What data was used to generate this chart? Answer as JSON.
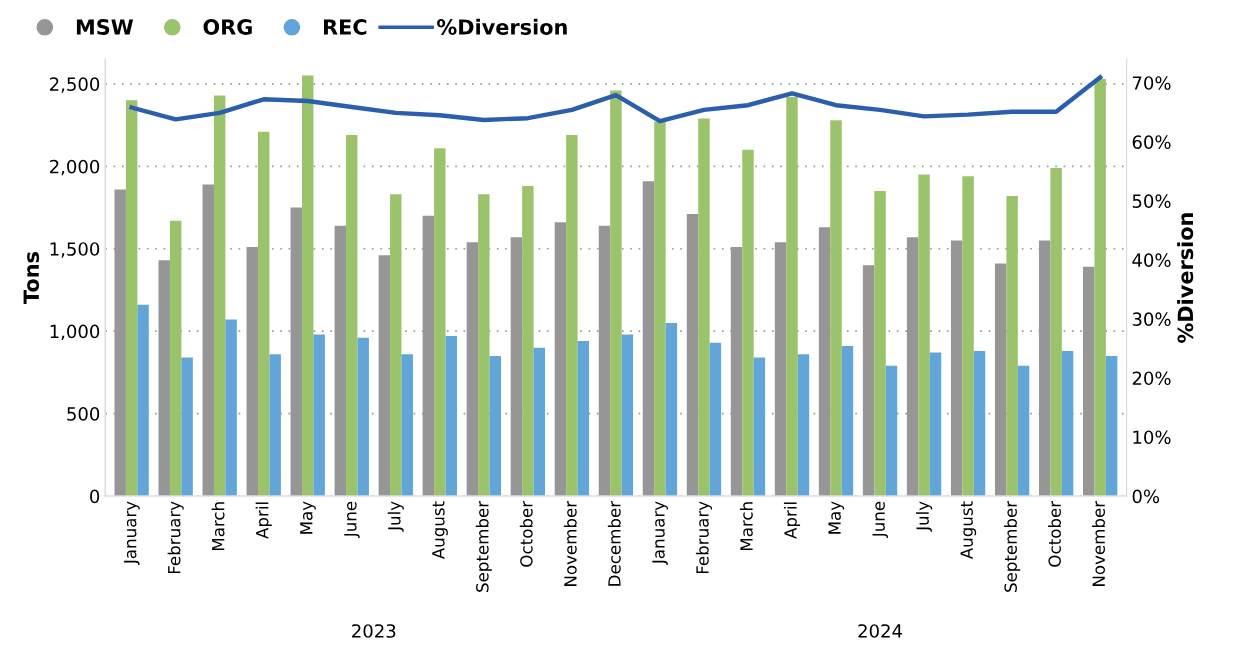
{
  "chart_data": {
    "type": "bar",
    "ylabel": "Tons",
    "y2label": "%Diversion",
    "categories": [
      "January",
      "February",
      "March",
      "April",
      "May",
      "June",
      "July",
      "August",
      "September",
      "October",
      "November",
      "December",
      "January",
      "February",
      "March",
      "April",
      "May",
      "June",
      "July",
      "August",
      "September",
      "October",
      "November"
    ],
    "series": [
      {
        "name": "MSW",
        "color": "#969696",
        "values": [
          1860,
          1430,
          1890,
          1510,
          1750,
          1640,
          1460,
          1700,
          1540,
          1570,
          1660,
          1640,
          1910,
          1710,
          1510,
          1540,
          1630,
          1400,
          1570,
          1550,
          1410,
          1550,
          1390
        ]
      },
      {
        "name": "ORG",
        "color": "#9bc36b",
        "values": [
          2400,
          1670,
          2430,
          2210,
          2550,
          2190,
          1830,
          2110,
          1830,
          1880,
          2190,
          2460,
          2270,
          2290,
          2100,
          2420,
          2280,
          1850,
          1950,
          1940,
          1820,
          1990,
          2530
        ]
      },
      {
        "name": "REC",
        "color": "#62a5d8",
        "values": [
          1160,
          840,
          1070,
          860,
          980,
          960,
          860,
          970,
          850,
          900,
          940,
          980,
          1050,
          930,
          840,
          860,
          910,
          790,
          870,
          880,
          790,
          880,
          850
        ]
      },
      {
        "name": "%Diversion",
        "type": "line",
        "axis": "y2",
        "color": "#2b5fae",
        "values": [
          65.8,
          63.8,
          64.9,
          67.2,
          66.9,
          65.9,
          64.9,
          64.5,
          63.7,
          64.0,
          65.4,
          67.9,
          63.5,
          65.4,
          66.2,
          68.2,
          66.2,
          65.4,
          64.3,
          64.6,
          65.1,
          65.1,
          70.9
        ]
      }
    ],
    "ylim": [
      0,
      2650
    ],
    "yticks": [
      0,
      {
        "value": 500,
        "label": "500"
      },
      {
        "value": 1000,
        "label": "1,000"
      },
      {
        "value": 1500,
        "label": "1,500"
      },
      {
        "value": 2000,
        "label": "2,000"
      },
      {
        "value": 2500,
        "label": "2,500"
      }
    ],
    "y2lim": [
      0,
      74
    ],
    "y2ticks": [
      {
        "value": 0,
        "label": "0%"
      },
      {
        "value": 10,
        "label": "10%"
      },
      {
        "value": 20,
        "label": "20%"
      },
      {
        "value": 30,
        "label": "30%"
      },
      {
        "value": 40,
        "label": "40%"
      },
      {
        "value": 50,
        "label": "50%"
      },
      {
        "value": 60,
        "label": "60%"
      },
      {
        "value": 70,
        "label": "70%"
      }
    ],
    "annotations": [
      "2023",
      "2024"
    ],
    "grid": "y",
    "legend": "top left"
  }
}
